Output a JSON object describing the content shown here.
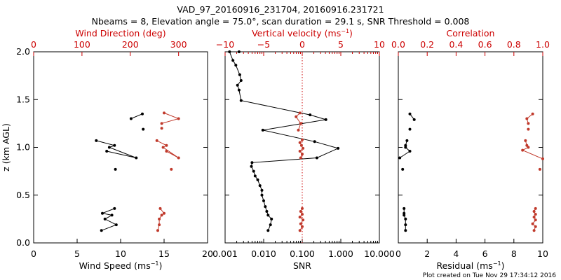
{
  "title_line1": "VAD_97_20160916_231704, 20160916.231721",
  "title_line2": "Nbeams = 8, Elevation angle = 75.0°, scan duration = 29.1 s, SNR Threshold = 0.008",
  "footer": "Plot created on Tue Nov 29 17:34:12 2016",
  "colors": {
    "black_series": "#000000",
    "red_series": "#c0392b",
    "red_axis": "#cc0000"
  },
  "chart_data": [
    {
      "type": "scatter",
      "title": "",
      "ylabel": "z (km AGL)",
      "ylim": [
        0.0,
        2.0
      ],
      "yticks": [
        0.0,
        0.5,
        1.0,
        1.5,
        2.0
      ],
      "ytick_labels": [
        "0.0",
        "0.5",
        "1.0",
        "1.5",
        "2.0"
      ],
      "xlabel": "Wind Speed (ms-1)",
      "xlim": [
        0,
        20
      ],
      "xticks": [
        0,
        5,
        10,
        15,
        20
      ],
      "xtick_labels": [
        "0",
        "5",
        "10",
        "15",
        "20"
      ],
      "top_xlabel": "Wind Direction (deg)",
      "top_xlim": [
        0,
        360
      ],
      "top_xticks": [
        0,
        100,
        200,
        300
      ],
      "top_xtick_labels": [
        "0",
        "100",
        "200",
        "300"
      ],
      "series": [
        {
          "color": "black",
          "axis": "bottom",
          "segments": [
            [
              [
                7.8,
                0.13
              ],
              [
                9.5,
                0.19
              ],
              [
                8.2,
                0.25
              ],
              [
                9.0,
                0.29
              ],
              [
                7.9,
                0.31
              ],
              [
                9.3,
                0.36
              ]
            ],
            [
              [
                9.4,
                0.77
              ]
            ],
            [
              [
                8.4,
                0.96
              ],
              [
                11.8,
                0.89
              ],
              [
                8.7,
                1.0
              ],
              [
                9.3,
                1.02
              ],
              [
                7.2,
                1.07
              ]
            ],
            [
              [
                12.6,
                1.19
              ]
            ],
            [
              [
                11.2,
                1.3
              ],
              [
                12.5,
                1.35
              ]
            ]
          ]
        },
        {
          "color": "red",
          "axis": "top",
          "segments": [
            [
              [
                257,
                0.13
              ],
              [
                260,
                0.19
              ],
              [
                260,
                0.25
              ],
              [
                265,
                0.29
              ],
              [
                270,
                0.31
              ],
              [
                262,
                0.36
              ]
            ],
            [
              [
                285,
                0.77
              ]
            ],
            [
              [
                275,
                0.96
              ],
              [
                300,
                0.89
              ],
              [
                268,
                1.0
              ],
              [
                275,
                1.02
              ],
              [
                255,
                1.07
              ]
            ],
            [
              [
                265,
                1.2
              ]
            ],
            [
              [
                265,
                1.25
              ],
              [
                300,
                1.3
              ],
              [
                270,
                1.36
              ]
            ]
          ]
        }
      ]
    },
    {
      "type": "scatter",
      "title": "",
      "ylim": [
        0.0,
        2.0
      ],
      "xlabel": "SNR",
      "xscale": "log",
      "xlim": [
        0.001,
        10
      ],
      "xticks": [
        0.001,
        0.01,
        0.1,
        1,
        10
      ],
      "xtick_labels": [
        "0.001",
        "0.010",
        "0.100",
        "1.000",
        "10.000"
      ],
      "top_xlabel": "Vertical velocity (ms-1)",
      "top_xlim": [
        -10,
        10
      ],
      "top_xticks": [
        -10,
        -5,
        0,
        5,
        10
      ],
      "top_xtick_labels": [
        "−10",
        "−5",
        "0",
        "5",
        "10"
      ],
      "reference_line": {
        "axis": "top",
        "x": 0,
        "style": "dotted",
        "color": "red"
      },
      "series": [
        {
          "color": "black",
          "axis": "bottom",
          "segments": [
            [
              [
                0.013,
                0.13
              ],
              [
                0.015,
                0.19
              ],
              [
                0.016,
                0.25
              ],
              [
                0.013,
                0.29
              ],
              [
                0.012,
                0.33
              ],
              [
                0.011,
                0.38
              ],
              [
                0.01,
                0.44
              ],
              [
                0.009,
                0.5
              ],
              [
                0.009,
                0.55
              ],
              [
                0.008,
                0.6
              ],
              [
                0.007,
                0.66
              ],
              [
                0.006,
                0.7
              ],
              [
                0.0055,
                0.75
              ],
              [
                0.0048,
                0.8
              ],
              [
                0.005,
                0.84
              ],
              [
                0.24,
                0.89
              ],
              [
                0.85,
                0.99
              ],
              [
                0.21,
                1.06
              ],
              [
                0.0095,
                1.18
              ],
              [
                0.41,
                1.29
              ],
              [
                0.16,
                1.34
              ],
              [
                0.0026,
                1.49
              ],
              [
                0.0023,
                1.6
              ],
              [
                0.0021,
                1.65
              ],
              [
                0.0026,
                1.7
              ],
              [
                0.0024,
                1.76
              ],
              [
                0.0019,
                1.86
              ],
              [
                0.0016,
                1.91
              ],
              [
                0.0013,
                2.0
              ],
              [
                0.0023,
                2.0
              ]
            ]
          ]
        },
        {
          "color": "red",
          "axis": "top",
          "segments": [
            [
              [
                -0.3,
                0.13
              ],
              [
                0.0,
                0.17
              ],
              [
                -0.2,
                0.2
              ],
              [
                0.1,
                0.24
              ],
              [
                -0.3,
                0.27
              ],
              [
                0.0,
                0.3
              ],
              [
                -0.2,
                0.33
              ],
              [
                0.0,
                0.36
              ]
            ],
            [
              [
                -0.2,
                0.89
              ],
              [
                0.0,
                0.93
              ],
              [
                -0.3,
                0.96
              ],
              [
                0.1,
                0.99
              ],
              [
                -0.1,
                1.02
              ],
              [
                -0.3,
                1.05
              ],
              [
                0.0,
                1.08
              ]
            ],
            [
              [
                -0.5,
                1.18
              ],
              [
                -0.2,
                1.25
              ],
              [
                -0.8,
                1.32
              ],
              [
                -0.3,
                1.36
              ]
            ]
          ]
        }
      ]
    },
    {
      "type": "scatter",
      "title": "",
      "ylim": [
        0.0,
        2.0
      ],
      "xlabel": "Residual (ms-1)",
      "xlim": [
        0,
        10
      ],
      "xticks": [
        0,
        2,
        4,
        6,
        8,
        10
      ],
      "xtick_labels": [
        "0",
        "2",
        "4",
        "6",
        "8",
        "10"
      ],
      "top_xlabel": "Correlation",
      "top_xlim": [
        0.0,
        1.0
      ],
      "top_xticks": [
        0.0,
        0.2,
        0.4,
        0.6,
        0.8,
        1.0
      ],
      "top_xtick_labels": [
        "0.0",
        "0.2",
        "0.4",
        "0.6",
        "0.8",
        "1.0"
      ],
      "series": [
        {
          "color": "black",
          "axis": "bottom",
          "segments": [
            [
              [
                0.5,
                0.13
              ],
              [
                0.5,
                0.19
              ],
              [
                0.5,
                0.25
              ],
              [
                0.4,
                0.29
              ],
              [
                0.4,
                0.31
              ],
              [
                0.4,
                0.36
              ]
            ],
            [
              [
                0.3,
                0.77
              ]
            ],
            [
              [
                0.1,
                0.89
              ],
              [
                0.8,
                0.96
              ],
              [
                0.5,
                1.0
              ],
              [
                0.5,
                1.02
              ],
              [
                0.6,
                1.07
              ]
            ],
            [
              [
                0.8,
                1.19
              ]
            ],
            [
              [
                1.1,
                1.29
              ],
              [
                0.8,
                1.35
              ]
            ]
          ]
        },
        {
          "color": "red",
          "axis": "top",
          "segments": [
            [
              [
                0.94,
                0.13
              ],
              [
                0.95,
                0.17
              ],
              [
                0.93,
                0.2
              ],
              [
                0.95,
                0.24
              ],
              [
                0.94,
                0.27
              ],
              [
                0.95,
                0.3
              ],
              [
                0.94,
                0.33
              ],
              [
                0.95,
                0.36
              ]
            ],
            [
              [
                0.98,
                0.77
              ]
            ],
            [
              [
                1.0,
                0.88
              ],
              [
                0.86,
                0.97
              ],
              [
                0.9,
                1.0
              ],
              [
                0.89,
                1.02
              ],
              [
                0.88,
                1.07
              ]
            ],
            [
              [
                0.9,
                1.19
              ]
            ],
            [
              [
                0.9,
                1.25
              ],
              [
                0.89,
                1.3
              ],
              [
                0.93,
                1.35
              ]
            ]
          ]
        }
      ]
    }
  ]
}
